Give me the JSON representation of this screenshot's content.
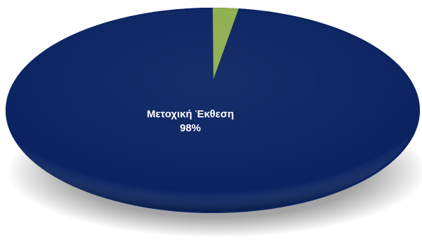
{
  "chart_data": {
    "type": "pie",
    "categories": [
      "Μετοχική Έκθεση",
      ""
    ],
    "values": [
      98,
      2
    ],
    "colors": [
      "#0b2461",
      "#8fae4f"
    ],
    "data_labels": [
      {
        "category": "Μετοχική Έκθεση",
        "value_label": "98%"
      }
    ],
    "title": "",
    "legend": "none",
    "style": "3d-ellipse"
  }
}
